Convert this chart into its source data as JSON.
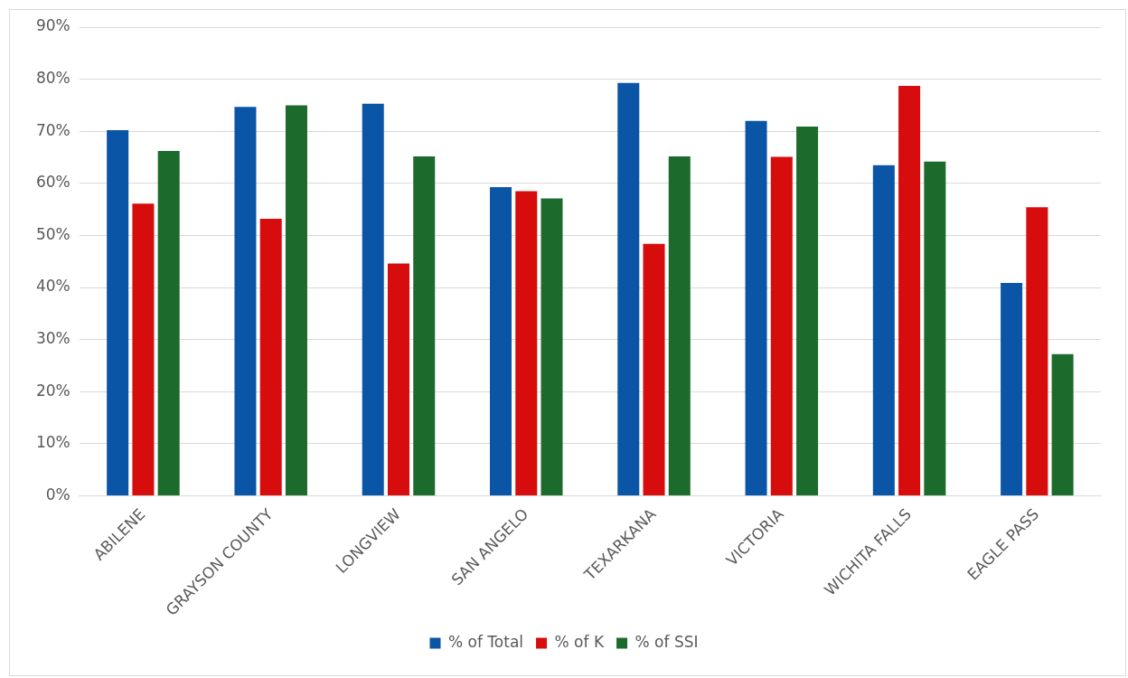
{
  "chart_data": {
    "type": "bar",
    "categories": [
      "ABILENE",
      "GRAYSON COUNTY",
      "LONGVIEW",
      "SAN ANGELO",
      "TEXARKANA",
      "VICTORIA",
      "WICHITA FALLS",
      "EAGLE PASS"
    ],
    "series": [
      {
        "name": "% of Total",
        "color": "#0a55a5",
        "values": [
          70.2,
          74.7,
          75.3,
          59.3,
          79.3,
          72.0,
          63.5,
          40.9
        ]
      },
      {
        "name": "% of K",
        "color": "#d70c0c",
        "values": [
          56.1,
          53.2,
          44.6,
          58.5,
          48.4,
          65.1,
          78.7,
          55.4
        ]
      },
      {
        "name": "% of SSI",
        "color": "#1d6b2c",
        "values": [
          66.2,
          75.0,
          65.2,
          57.1,
          65.2,
          70.9,
          64.2,
          27.2
        ]
      }
    ],
    "ylim": [
      0,
      90
    ],
    "yticks": [
      {
        "value": 0,
        "label": "0%"
      },
      {
        "value": 10,
        "label": "10%"
      },
      {
        "value": 20,
        "label": "20%"
      },
      {
        "value": 30,
        "label": "30%"
      },
      {
        "value": 40,
        "label": "40%"
      },
      {
        "value": 50,
        "label": "50%"
      },
      {
        "value": 60,
        "label": "60%"
      },
      {
        "value": 70,
        "label": "70%"
      },
      {
        "value": 80,
        "label": "80%"
      },
      {
        "value": 90,
        "label": "90%"
      }
    ],
    "grid": "y",
    "legend": "bottom"
  }
}
